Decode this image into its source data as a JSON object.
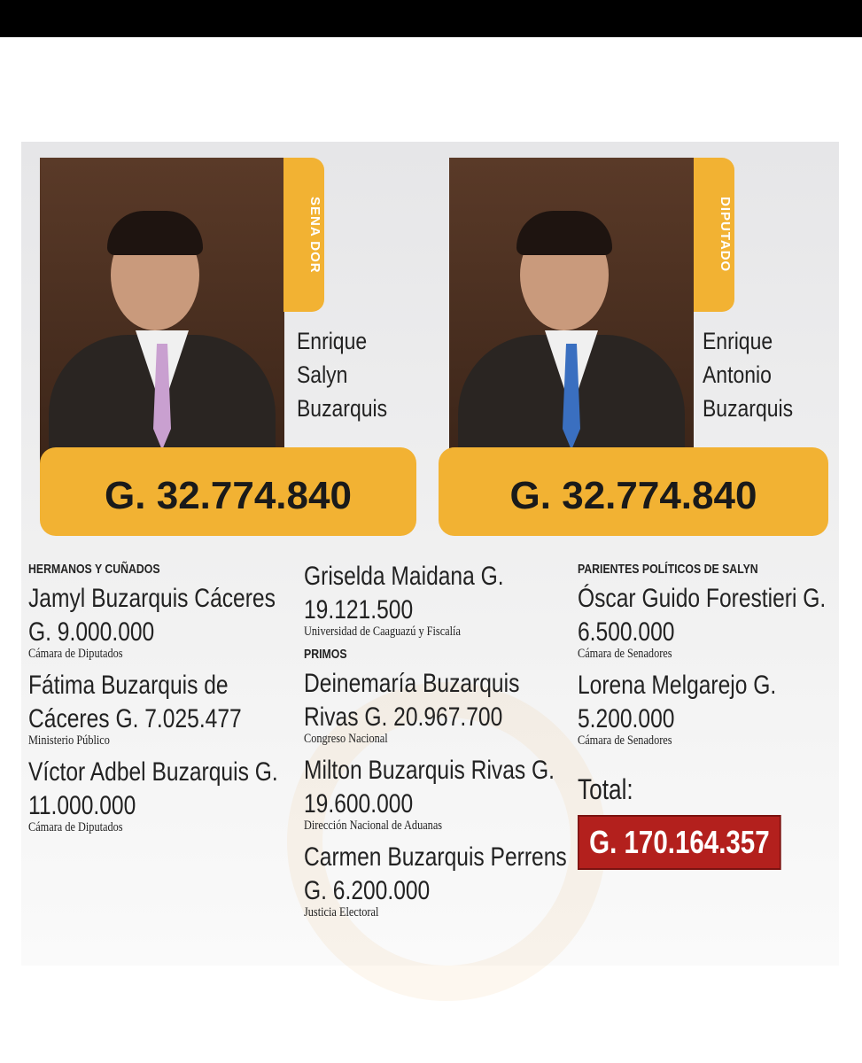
{
  "profiles": [
    {
      "role": "SENA DOR",
      "name_lines": [
        "Enrique",
        "Salyn",
        "Buzarquis"
      ],
      "salary": "G. 32.774.840"
    },
    {
      "role": "DIPUTADO",
      "name_lines": [
        "Enrique",
        "Antonio",
        "Buzarquis"
      ],
      "salary": "G. 32.774.840"
    }
  ],
  "columns": [
    {
      "groups": [
        {
          "heading": "HERMANOS Y CUÑADOS",
          "people": [
            {
              "name": "Jamyl Buzarquis Cáceres",
              "salary": "G. 9.000.000",
              "institution": "Cámara de Diputados"
            },
            {
              "name": "Fátima Buzarquis de Cáceres",
              "salary": "G. 7.025.477",
              "institution": "Ministerio Público"
            },
            {
              "name": "Víctor Adbel Buzarquis",
              "salary": "G. 11.000.000",
              "institution": "Cámara de Diputados"
            }
          ]
        }
      ]
    },
    {
      "groups": [
        {
          "people": [
            {
              "name": "Griselda Maidana",
              "salary": "G. 19.121.500",
              "institution": "Universidad de Caaguazú y Fiscalía"
            }
          ]
        },
        {
          "heading": "PRIMOS",
          "people": [
            {
              "name": "Deinemaría Buzarquis Rivas",
              "salary": "G. 20.967.700",
              "institution": "Congreso Nacional"
            },
            {
              "name": "Milton Buzarquis Rivas",
              "salary": "G. 19.600.000",
              "institution": "Dirección Nacional de Aduanas"
            },
            {
              "name": "Carmen Buzarquis Perrens",
              "salary": "G. 6.200.000",
              "institution": "Justicia Electoral"
            }
          ]
        }
      ]
    },
    {
      "groups": [
        {
          "heading": "PARIENTES POLÍTICOS DE SALYN",
          "people": [
            {
              "name": "Óscar Guido Forestieri",
              "salary": "G. 6.500.000",
              "institution": "Cámara de Senadores"
            },
            {
              "name": "Lorena Melgarejo",
              "salary": "G. 5.200.000",
              "institution": "Cámara de Senadores"
            }
          ]
        }
      ],
      "total": {
        "label": "Total:",
        "value": "G. 170.164.357"
      }
    }
  ]
}
